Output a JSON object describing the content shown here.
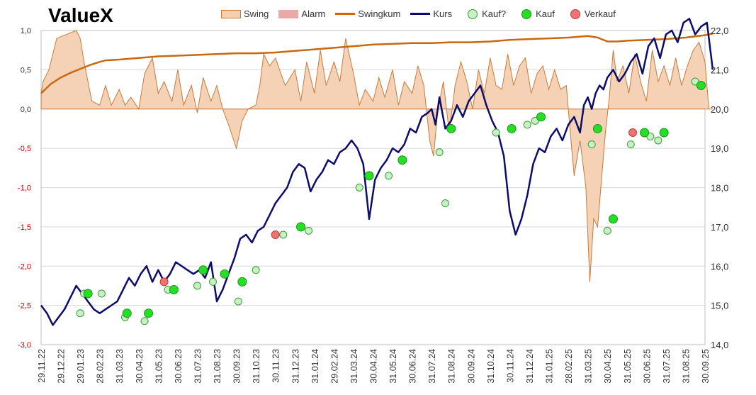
{
  "title": "ValueX",
  "legend": [
    {
      "label": "Swing",
      "kind": "box",
      "color": "#f5cfae",
      "border": "#c87a3a"
    },
    {
      "label": "Alarm",
      "kind": "box",
      "color": "#e8a9a9",
      "border": "#e8a9a9"
    },
    {
      "label": "Swingkum",
      "kind": "line",
      "color": "#c8690f"
    },
    {
      "label": "Kurs",
      "kind": "line",
      "color": "#0c0c6a"
    },
    {
      "label": "Kauf?",
      "kind": "dot",
      "color": "#c6f2c2",
      "border": "#3e9a3e"
    },
    {
      "label": "Kauf",
      "kind": "dot",
      "color": "#22e122",
      "border": "#1f8f1f"
    },
    {
      "label": "Verkauf",
      "kind": "dot",
      "color": "#f07272",
      "border": "#c03a3a"
    }
  ],
  "colors": {
    "swing_fill": "#f5d2b5",
    "swing_stroke": "#c87a3a",
    "swingkum": "#c8690f",
    "kurs": "#0c0c6a",
    "grid": "#d9d9d9",
    "left_neg_label": "#c00000"
  },
  "chart_data": {
    "type": "line",
    "x_tick_labels": [
      "29.11.22",
      "29.12.22",
      "29.01.23",
      "28.02.23",
      "31.03.23",
      "30.04.23",
      "31.05.23",
      "30.06.23",
      "31.07.23",
      "31.08.23",
      "30.09.23",
      "31.10.23",
      "30.11.23",
      "31.12.23",
      "31.01.24",
      "29.02.24",
      "31.03.24",
      "30.04.24",
      "31.05.24",
      "30.06.24",
      "31.07.24",
      "31.08.24",
      "30.09.24",
      "31.10.24",
      "30.11.24",
      "31.12.24",
      "31.01.25",
      "28.02.25",
      "31.03.25",
      "30.04.25",
      "31.05.25",
      "30.06.25",
      "31.07.25",
      "31.08.25",
      "30.09.25"
    ],
    "y_left": {
      "min": -3.0,
      "max": 1.0,
      "ticks": [
        "1,0",
        "0,5",
        "0,0",
        "-0,5",
        "-1,0",
        "-1,5",
        "-2,0",
        "-2,5",
        "-3,0"
      ]
    },
    "y_right": {
      "min": 14.0,
      "max": 22.0,
      "ticks": [
        "22,0",
        "21,0",
        "20,0",
        "19,0",
        "18,0",
        "17,0",
        "16,0",
        "15,0",
        "14,0"
      ]
    },
    "series": [
      {
        "name": "Swing",
        "axis": "left",
        "x": [
          0,
          0.1,
          0.4,
          0.8,
          1.8,
          2.0,
          2.2,
          2.6,
          3.0,
          3.3,
          3.6,
          4.0,
          4.3,
          4.6,
          5.0,
          5.3,
          5.7,
          6.0,
          6.3,
          6.7,
          7.0,
          7.3,
          7.7,
          8.0,
          8.3,
          8.7,
          9.0,
          9.3,
          9.6,
          10.0,
          10.3,
          10.6,
          11.0,
          11.2,
          11.4,
          11.7,
          12.0,
          12.5,
          13.0,
          13.3,
          13.6,
          14.0,
          14.3,
          14.6,
          15.0,
          15.3,
          15.6,
          16.0,
          16.3,
          16.6,
          17.0,
          17.3,
          17.6,
          18.0,
          18.3,
          18.6,
          19.0,
          19.3,
          19.6,
          19.9,
          20.1,
          20.3,
          20.6,
          20.9,
          21.2,
          21.5,
          21.8,
          22.1,
          22.4,
          22.7,
          23.0,
          23.3,
          23.6,
          23.9,
          24.2,
          24.5,
          24.8,
          25.1,
          25.4,
          25.7,
          26.0,
          26.3,
          26.6,
          26.9,
          27.1,
          27.3,
          27.6,
          27.9,
          28.1,
          28.3,
          28.5,
          28.7,
          28.9,
          29.1,
          29.3,
          29.5,
          29.8,
          30.1,
          30.4,
          30.7,
          31.0,
          31.3,
          31.6,
          31.9,
          32.2,
          32.5,
          32.8,
          33.1,
          33.4,
          33.7,
          34.0,
          34.2,
          34.4
        ],
        "values": [
          0.2,
          0.35,
          0.5,
          0.9,
          1.0,
          0.9,
          0.6,
          0.1,
          0.05,
          0.3,
          0.05,
          0.25,
          0.05,
          0.15,
          0.0,
          0.45,
          0.65,
          0.2,
          0.35,
          0.1,
          0.5,
          0.05,
          0.3,
          -0.05,
          0.4,
          0.1,
          0.3,
          0.0,
          -0.2,
          -0.5,
          -0.15,
          0.0,
          0.05,
          0.3,
          0.7,
          0.55,
          0.65,
          0.3,
          0.5,
          0.1,
          0.6,
          0.2,
          0.75,
          0.3,
          0.6,
          0.35,
          0.9,
          0.45,
          0.05,
          0.25,
          0.1,
          0.4,
          0.15,
          0.5,
          0.05,
          0.35,
          0.2,
          0.55,
          0.3,
          -0.4,
          -0.6,
          -0.05,
          0.35,
          -0.3,
          0.3,
          0.6,
          0.35,
          0.0,
          0.5,
          0.2,
          0.65,
          0.3,
          0.25,
          0.7,
          0.3,
          0.55,
          0.65,
          0.2,
          0.45,
          0.55,
          0.25,
          0.5,
          0.25,
          0.3,
          -0.3,
          -0.85,
          -0.4,
          -1.0,
          -2.2,
          -1.4,
          -1.5,
          -0.9,
          -0.3,
          0.15,
          0.75,
          0.35,
          0.55,
          0.2,
          0.7,
          0.35,
          0.1,
          0.75,
          0.35,
          0.55,
          0.3,
          0.65,
          0.3,
          0.55,
          0.75,
          0.85,
          0.6,
          0.0,
          0.0
        ]
      },
      {
        "name": "Swingkum",
        "axis": "left",
        "x": [
          0,
          0.5,
          1.0,
          1.5,
          2.0,
          2.5,
          3.0,
          3.3,
          4.0,
          5.0,
          6.0,
          7.0,
          8.0,
          9.0,
          10.0,
          11.0,
          12.0,
          13.0,
          14.0,
          15.0,
          16.0,
          17.0,
          18.0,
          19.0,
          20.0,
          21.0,
          22.0,
          23.0,
          24.0,
          25.0,
          26.0,
          27.0,
          28.0,
          28.5,
          29.0,
          29.5,
          30.0,
          31.0,
          32.0,
          33.0,
          34.0,
          34.4
        ],
        "values": [
          0.2,
          0.32,
          0.4,
          0.46,
          0.51,
          0.56,
          0.6,
          0.62,
          0.63,
          0.65,
          0.67,
          0.68,
          0.69,
          0.7,
          0.71,
          0.71,
          0.72,
          0.74,
          0.76,
          0.78,
          0.8,
          0.82,
          0.83,
          0.84,
          0.84,
          0.85,
          0.85,
          0.86,
          0.88,
          0.89,
          0.9,
          0.91,
          0.93,
          0.91,
          0.86,
          0.86,
          0.87,
          0.88,
          0.89,
          0.91,
          0.94,
          0.96
        ]
      },
      {
        "name": "Kurs",
        "axis": "right",
        "x": [
          0,
          0.3,
          0.6,
          0.9,
          1.2,
          1.5,
          1.8,
          2.1,
          2.4,
          2.7,
          3.0,
          3.3,
          3.6,
          3.9,
          4.2,
          4.5,
          4.8,
          5.1,
          5.4,
          5.7,
          6.0,
          6.3,
          6.6,
          6.9,
          7.2,
          7.5,
          7.8,
          8.1,
          8.4,
          8.7,
          9.0,
          9.3,
          9.6,
          9.9,
          10.2,
          10.5,
          10.8,
          11.1,
          11.4,
          11.7,
          12.0,
          12.3,
          12.6,
          12.9,
          13.2,
          13.5,
          13.8,
          14.1,
          14.4,
          14.7,
          15.0,
          15.3,
          15.6,
          15.9,
          16.2,
          16.5,
          16.8,
          17.1,
          17.4,
          17.7,
          18.0,
          18.3,
          18.6,
          18.9,
          19.2,
          19.5,
          19.8,
          20.0,
          20.2,
          20.4,
          20.7,
          21.0,
          21.3,
          21.6,
          21.9,
          22.2,
          22.5,
          22.8,
          23.1,
          23.4,
          23.7,
          24.0,
          24.3,
          24.6,
          24.9,
          25.2,
          25.5,
          25.8,
          26.1,
          26.4,
          26.7,
          27.0,
          27.3,
          27.6,
          27.8,
          28.0,
          28.2,
          28.4,
          28.6,
          28.8,
          29.0,
          29.3,
          29.6,
          29.9,
          30.2,
          30.5,
          30.8,
          31.1,
          31.4,
          31.7,
          32.0,
          32.3,
          32.6,
          32.9,
          33.2,
          33.5,
          33.8,
          34.1,
          34.4
        ],
        "values": [
          15.0,
          14.8,
          14.5,
          14.7,
          14.9,
          15.2,
          15.5,
          15.3,
          15.1,
          14.9,
          14.8,
          14.9,
          15.0,
          15.1,
          15.4,
          15.7,
          15.5,
          15.8,
          16.0,
          15.6,
          15.9,
          15.6,
          15.8,
          16.1,
          16.0,
          15.9,
          15.8,
          15.9,
          15.7,
          16.1,
          15.1,
          15.4,
          15.8,
          16.2,
          16.7,
          16.8,
          16.6,
          16.9,
          17.0,
          17.3,
          17.6,
          17.8,
          18.0,
          18.4,
          18.6,
          18.5,
          17.9,
          18.2,
          18.4,
          18.7,
          18.6,
          18.9,
          19.0,
          19.2,
          19.0,
          18.6,
          17.2,
          18.2,
          18.5,
          18.7,
          19.0,
          18.9,
          19.1,
          19.5,
          19.4,
          19.8,
          19.9,
          20.0,
          19.6,
          20.3,
          19.5,
          19.7,
          20.1,
          19.8,
          20.2,
          20.4,
          20.6,
          20.1,
          19.7,
          19.4,
          18.8,
          17.4,
          16.8,
          17.2,
          17.8,
          18.6,
          19.0,
          18.9,
          19.3,
          19.5,
          19.2,
          19.6,
          19.8,
          19.4,
          20.1,
          20.3,
          20.0,
          20.4,
          20.6,
          20.5,
          20.8,
          21.0,
          20.7,
          20.9,
          21.2,
          21.4,
          20.9,
          21.6,
          21.8,
          21.3,
          21.9,
          22.0,
          21.7,
          22.2,
          22.3,
          21.9,
          22.1,
          22.2,
          21.0
        ]
      },
      {
        "name": "Kauf?",
        "axis": "right",
        "x": [
          2.0,
          2.2,
          3.1,
          4.3,
          5.3,
          6.5,
          8.0,
          8.8,
          10.1,
          11.0,
          12.4,
          13.7,
          16.3,
          17.8,
          20.4,
          20.7,
          23.3,
          24.9,
          25.3,
          28.2,
          29.0,
          30.2,
          31.2,
          31.6,
          33.5
        ],
        "values": [
          14.8,
          15.3,
          15.3,
          14.7,
          14.6,
          15.4,
          15.5,
          15.6,
          15.1,
          15.9,
          16.8,
          16.9,
          18.0,
          18.3,
          18.9,
          17.6,
          19.4,
          19.6,
          19.7,
          19.1,
          16.9,
          19.1,
          19.3,
          19.2,
          20.7
        ]
      },
      {
        "name": "Kauf",
        "axis": "right",
        "x": [
          2.4,
          4.4,
          5.5,
          6.8,
          8.3,
          9.4,
          10.3,
          13.3,
          16.8,
          18.5,
          21.0,
          24.1,
          25.6,
          28.5,
          29.3,
          30.9,
          31.9,
          33.8
        ],
        "values": [
          15.3,
          14.8,
          14.8,
          15.4,
          15.9,
          15.8,
          15.6,
          17.0,
          18.3,
          18.7,
          19.5,
          19.5,
          19.8,
          19.5,
          17.2,
          19.4,
          19.4,
          20.6
        ]
      },
      {
        "name": "Verkauf",
        "axis": "right",
        "x": [
          6.3,
          12.0,
          30.3
        ],
        "values": [
          15.6,
          16.8,
          19.4
        ]
      }
    ]
  }
}
